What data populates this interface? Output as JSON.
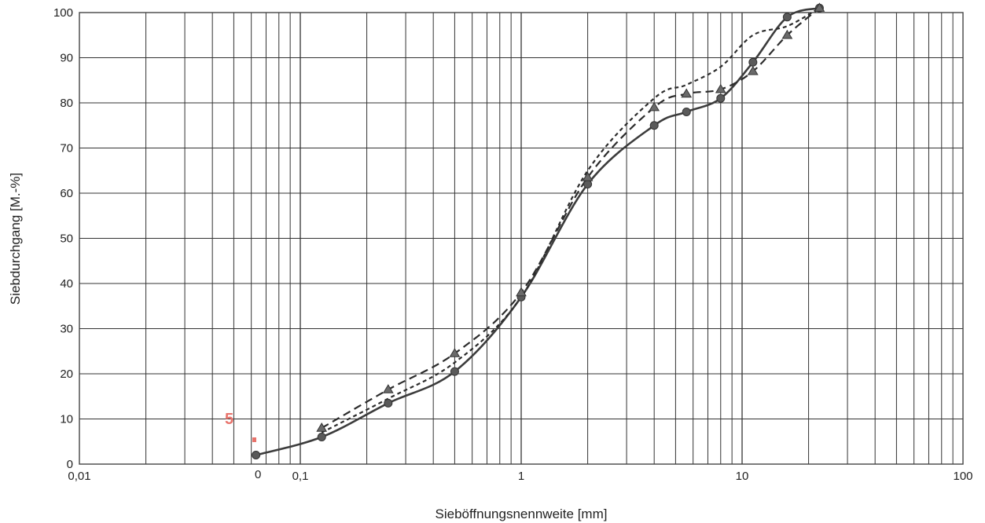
{
  "chart_data": {
    "type": "line",
    "title": "",
    "xlabel": "Sieböffnungsnennweite [mm]",
    "ylabel": "Siebdurchgang [M.-%]",
    "xscale": "log",
    "xlim": [
      0.01,
      100
    ],
    "ylim": [
      0,
      100
    ],
    "grid": true,
    "legend": "none",
    "x_ticks": [
      {
        "value": 0.01,
        "label": "0,01"
      },
      {
        "value": 0.1,
        "label": "0,1"
      },
      {
        "value": 1,
        "label": "1"
      },
      {
        "value": 10,
        "label": "10"
      },
      {
        "value": 100,
        "label": "100"
      }
    ],
    "y_ticks": [
      {
        "value": 0,
        "label": "0"
      },
      {
        "value": 10,
        "label": "10"
      },
      {
        "value": 20,
        "label": "20"
      },
      {
        "value": 30,
        "label": "30"
      },
      {
        "value": 40,
        "label": "40"
      },
      {
        "value": 50,
        "label": "50"
      },
      {
        "value": 60,
        "label": "60"
      },
      {
        "value": 70,
        "label": "70"
      },
      {
        "value": 80,
        "label": "80"
      },
      {
        "value": 90,
        "label": "90"
      },
      {
        "value": 100,
        "label": "100"
      }
    ],
    "series": [
      {
        "style": "solid",
        "marker": "circle",
        "color": "#3c3c3c",
        "x": [
          0.063,
          0.125,
          0.25,
          0.5,
          1,
          2,
          4,
          5.6,
          8,
          11.2,
          16,
          22.4
        ],
        "y": [
          2,
          6,
          13.5,
          20.5,
          37,
          62,
          75,
          78,
          81,
          89,
          99,
          101
        ]
      },
      {
        "style": "dashed",
        "marker": "triangle",
        "color": "#2c2c2c",
        "x": [
          0.125,
          0.25,
          0.5,
          1,
          2,
          4,
          5.6,
          8,
          11.2,
          16,
          22.4
        ],
        "y": [
          8,
          16.5,
          24.5,
          38,
          63.5,
          79,
          82,
          83,
          87,
          95,
          101
        ]
      },
      {
        "style": "dotted",
        "marker": "none",
        "color": "#2c2c2c",
        "x": [
          0.125,
          0.25,
          0.5,
          1,
          2,
          4,
          5.6,
          8,
          11.2,
          16,
          22.4
        ],
        "y": [
          7,
          14.5,
          22.5,
          37,
          65,
          81,
          84,
          88,
          95,
          97,
          101
        ]
      }
    ],
    "annotations": [
      {
        "text": "5",
        "color": "#e8736b"
      },
      {
        "text": "0",
        "color": "#222222"
      }
    ]
  }
}
